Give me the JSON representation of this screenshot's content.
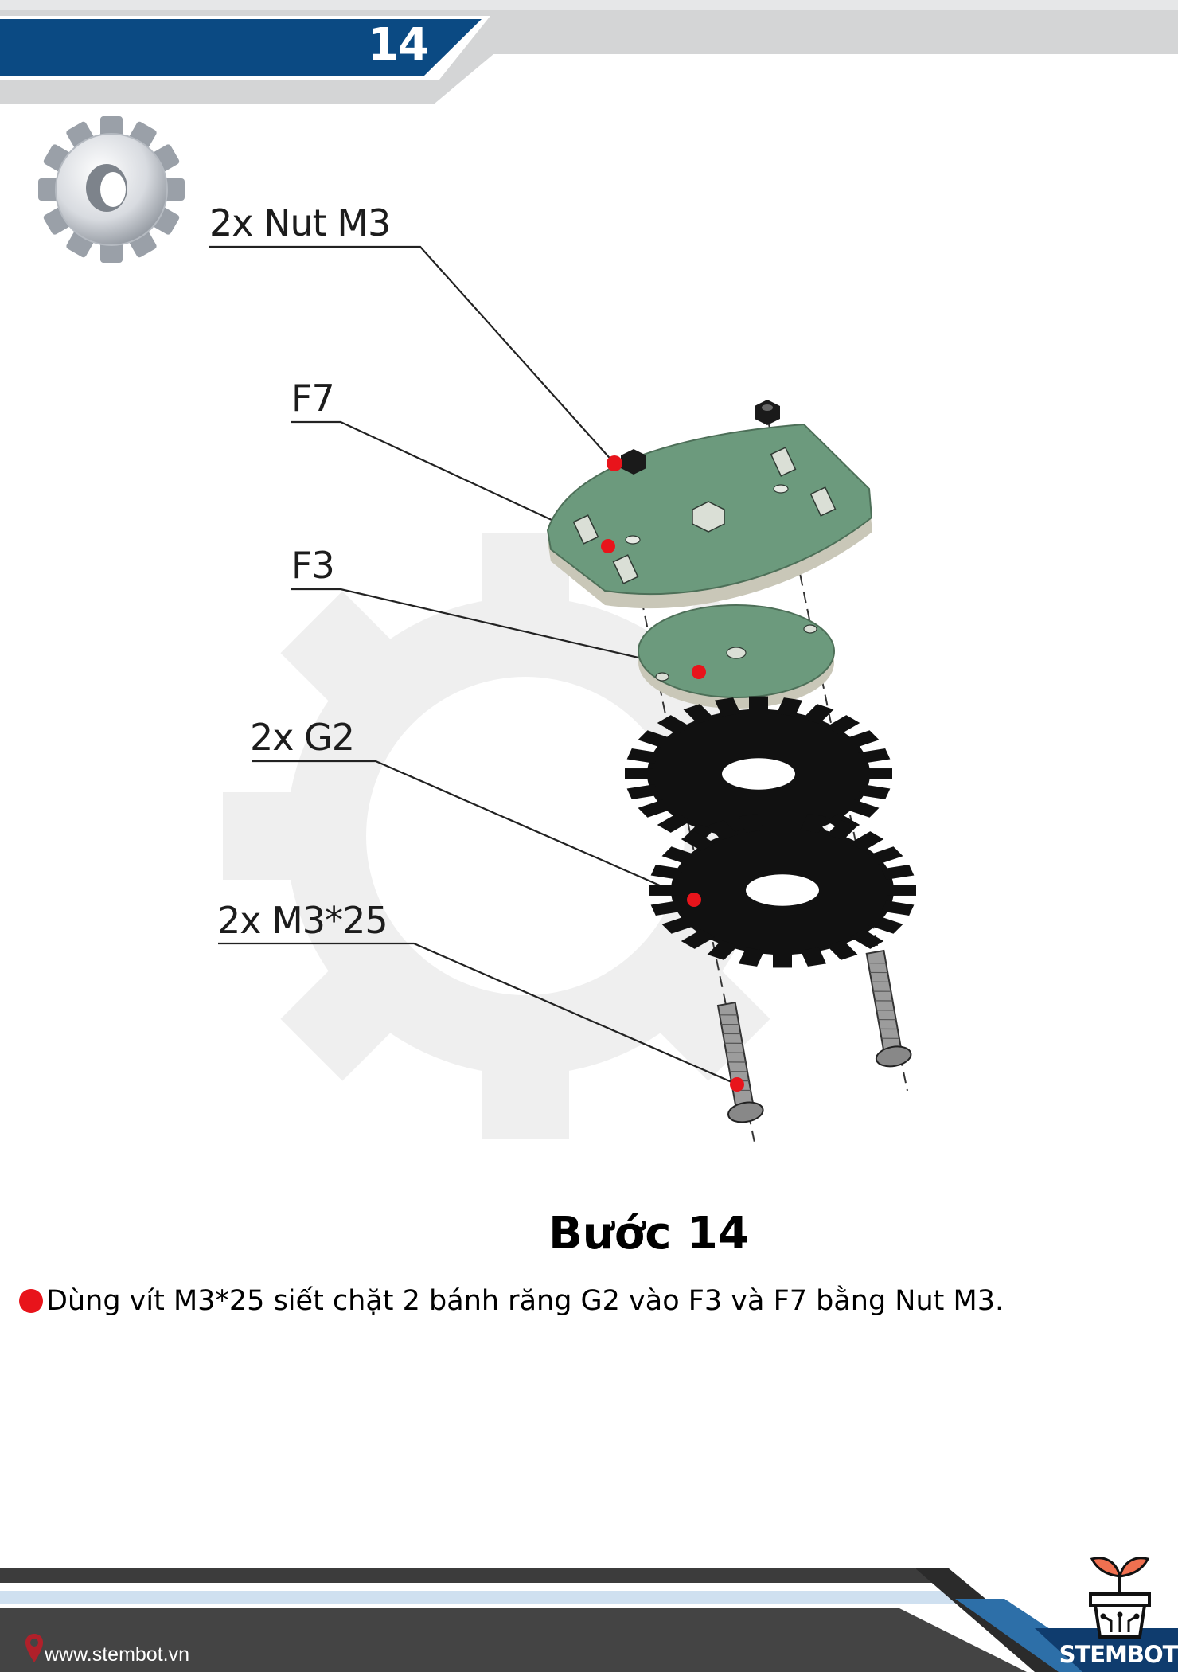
{
  "header": {
    "page_number": "14"
  },
  "callouts": [
    {
      "label": "2x Nut M3"
    },
    {
      "label": "F7"
    },
    {
      "label": "F3"
    },
    {
      "label": "2x G2"
    },
    {
      "label": "2x M3*25"
    }
  ],
  "step": {
    "title": "Bước 14",
    "instruction": "Dùng vít M3*25 siết chặt 2 bánh răng G2 vào F3 và F7 bằng Nut M3."
  },
  "footer": {
    "website": "www.stembot.vn",
    "brand": "STEMBOT"
  },
  "colors": {
    "header_blue": "#0b4a83",
    "header_gray": "#d2d3d4",
    "plate_green": "#6c9a7d",
    "marker_red": "#e8141b",
    "footer_dark": "#414141",
    "footer_blue": "#2d6fa8"
  },
  "icons": [
    "gear-icon",
    "location-pin-icon",
    "plant-robot-logo-icon"
  ]
}
